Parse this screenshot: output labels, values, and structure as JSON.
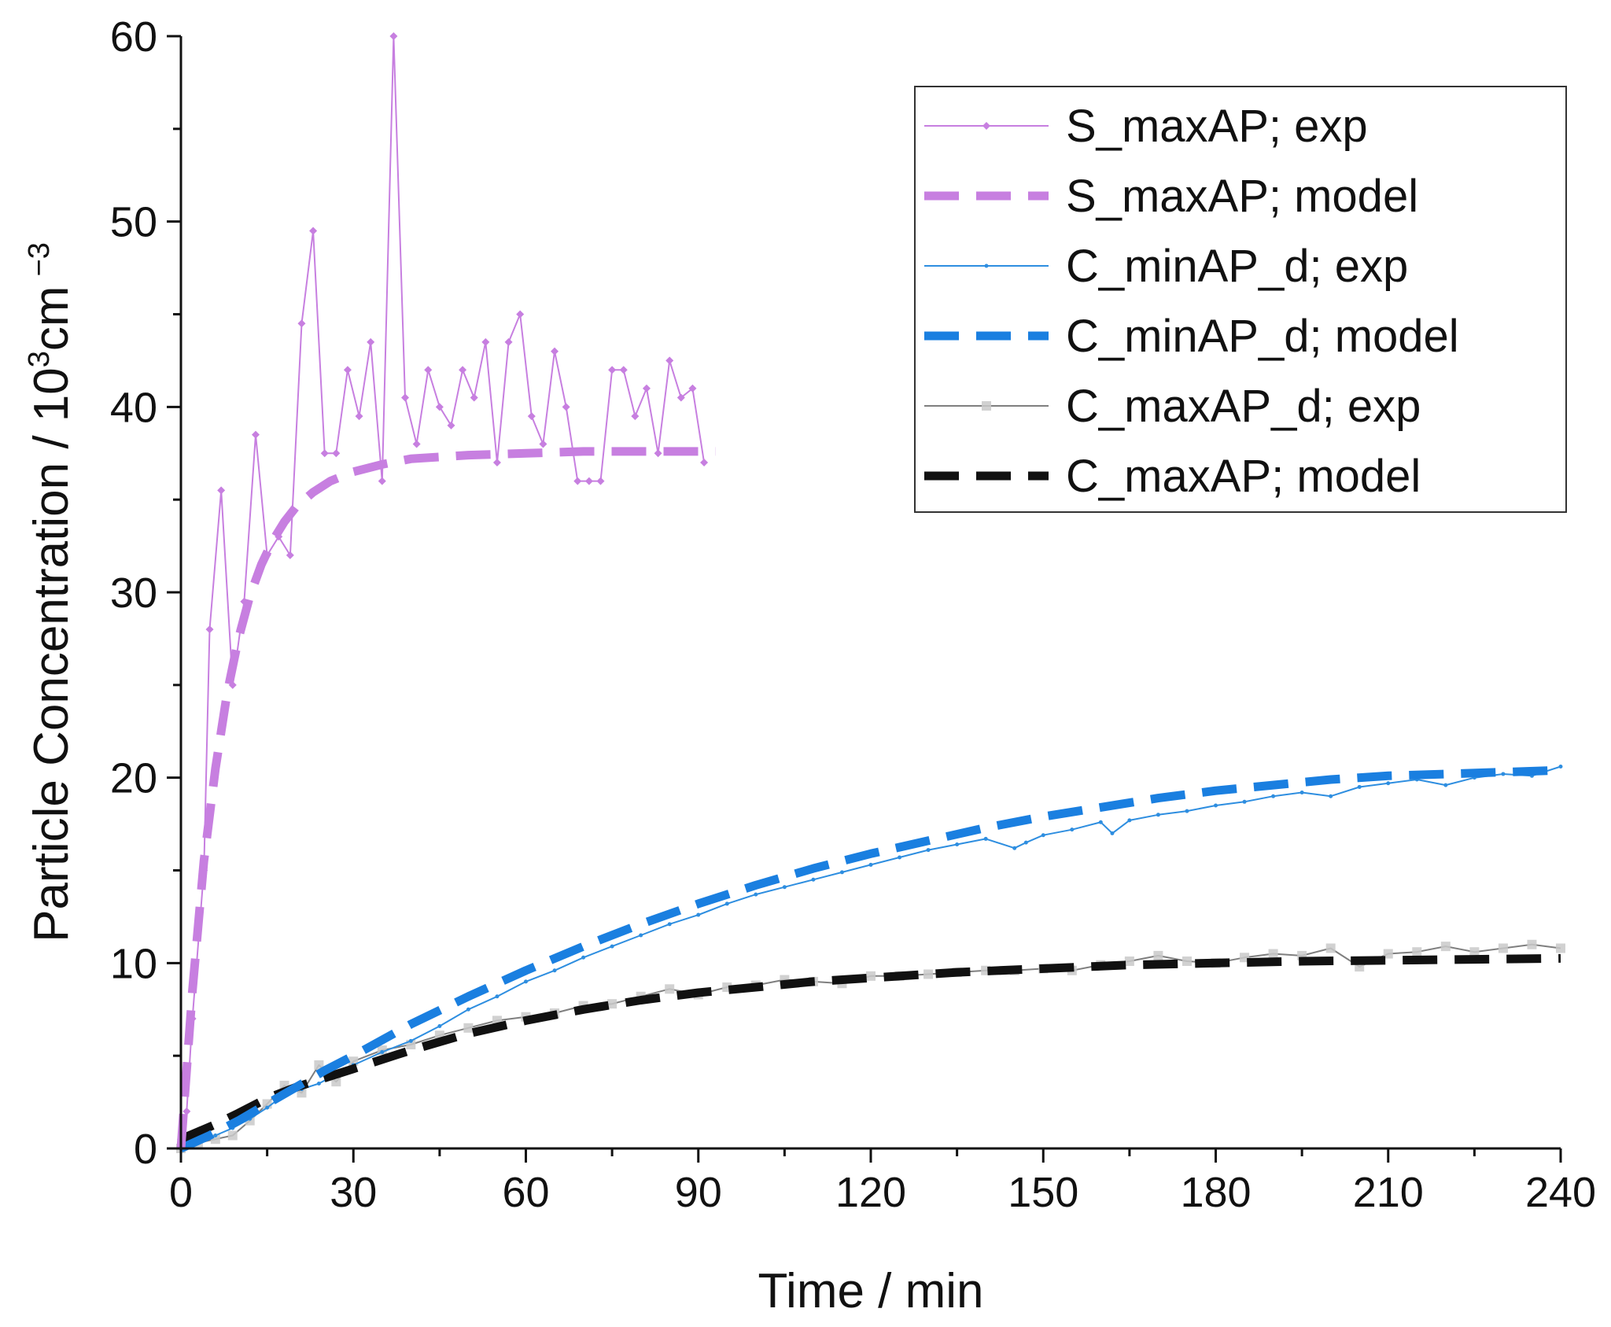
{
  "chart_data": {
    "type": "line",
    "title": "",
    "xlabel": "Time / min",
    "ylabel_main": "Particle Concentration / 10",
    "ylabel_sup": "3",
    "ylabel_unit": "cm",
    "ylabel_unit_sup": "−3",
    "xlim": [
      0,
      240
    ],
    "ylim": [
      0,
      60
    ],
    "xticks": [
      "0",
      "30",
      "60",
      "90",
      "120",
      "150",
      "180",
      "210",
      "240"
    ],
    "yticks": [
      "0",
      "10",
      "20",
      "30",
      "40",
      "50",
      "60"
    ],
    "grid": false,
    "legend_position": "top-right",
    "series": [
      {
        "name": "S_maxAP; exp",
        "style": "thin-line-diamond-markers",
        "color": "#c77fe0",
        "x": [
          0,
          1,
          2,
          4,
          5,
          7,
          9,
          11,
          13,
          15,
          17,
          19,
          21,
          23,
          25,
          27,
          29,
          31,
          33,
          35,
          37,
          39,
          41,
          43,
          45,
          47,
          49,
          51,
          53,
          55,
          57,
          59,
          61,
          63,
          65,
          67,
          69,
          71,
          73,
          75,
          77,
          79,
          81,
          83,
          85,
          87,
          89,
          91
        ],
        "y": [
          0.5,
          2,
          7,
          15,
          28,
          35.5,
          25,
          29.5,
          38.5,
          32,
          33,
          32,
          44.5,
          49.5,
          37.5,
          37.5,
          42,
          39.5,
          43.5,
          36,
          60,
          40.5,
          38,
          42,
          40,
          39,
          42,
          40.5,
          43.5,
          37,
          43.5,
          45,
          39.5,
          38,
          43,
          40,
          36,
          36,
          36,
          42,
          42,
          39.5,
          41,
          37.5,
          42.5,
          40.5,
          41,
          37
        ]
      },
      {
        "name": "S_maxAP; model",
        "style": "dashed",
        "color": "#c77fe0",
        "x": [
          0,
          2,
          4,
          6,
          8,
          10,
          12,
          14,
          16,
          18,
          20,
          23,
          26,
          30,
          35,
          40,
          50,
          60,
          70,
          80,
          93
        ],
        "y": [
          0,
          8.5,
          15.5,
          20.5,
          24.5,
          27.5,
          29.8,
          31.5,
          32.8,
          33.8,
          34.6,
          35.4,
          36.0,
          36.5,
          36.9,
          37.2,
          37.4,
          37.5,
          37.6,
          37.6,
          37.6
        ]
      },
      {
        "name": "C_minAP_d; exp",
        "style": "thin-line-small-markers",
        "color": "#2e8ee0",
        "x": [
          0,
          3,
          6,
          9,
          12,
          15,
          18,
          21,
          24,
          27,
          30,
          35,
          40,
          45,
          50,
          55,
          60,
          65,
          70,
          75,
          80,
          85,
          90,
          95,
          100,
          105,
          110,
          115,
          120,
          125,
          130,
          135,
          140,
          145,
          147,
          150,
          155,
          160,
          162,
          165,
          170,
          175,
          180,
          185,
          190,
          195,
          200,
          205,
          210,
          215,
          220,
          225,
          230,
          235,
          240
        ],
        "y": [
          0,
          0.3,
          0.7,
          1.1,
          1.6,
          2.2,
          2.9,
          3.2,
          3.5,
          4.0,
          4.5,
          5.2,
          5.8,
          6.6,
          7.5,
          8.2,
          9.0,
          9.6,
          10.3,
          10.9,
          11.5,
          12.1,
          12.6,
          13.2,
          13.7,
          14.1,
          14.5,
          14.9,
          15.3,
          15.7,
          16.1,
          16.4,
          16.7,
          16.2,
          16.5,
          16.9,
          17.2,
          17.6,
          17.0,
          17.7,
          18.0,
          18.2,
          18.5,
          18.7,
          19.0,
          19.2,
          19.0,
          19.5,
          19.7,
          19.9,
          19.6,
          20.0,
          20.2,
          20.1,
          20.6
        ]
      },
      {
        "name": "C_minAP_d; model",
        "style": "dashed",
        "color": "#1a7fe0",
        "x": [
          0,
          5,
          10,
          15,
          20,
          25,
          30,
          40,
          50,
          60,
          70,
          80,
          90,
          100,
          110,
          120,
          130,
          140,
          150,
          160,
          170,
          180,
          190,
          200,
          210,
          220,
          230,
          240
        ],
        "y": [
          0,
          0.7,
          1.5,
          2.4,
          3.3,
          4.2,
          5.0,
          6.7,
          8.2,
          9.6,
          10.9,
          12.1,
          13.2,
          14.2,
          15.1,
          15.9,
          16.6,
          17.3,
          17.9,
          18.4,
          18.9,
          19.3,
          19.6,
          19.9,
          20.1,
          20.2,
          20.3,
          20.4
        ]
      },
      {
        "name": "C_maxAP_d; exp",
        "style": "thin-line-square-markers",
        "color": "#7f7f7f",
        "x": [
          0,
          3,
          6,
          9,
          12,
          15,
          18,
          21,
          24,
          27,
          30,
          35,
          40,
          45,
          50,
          55,
          60,
          65,
          70,
          75,
          80,
          85,
          90,
          95,
          100,
          105,
          110,
          115,
          120,
          125,
          130,
          135,
          140,
          145,
          150,
          155,
          160,
          165,
          170,
          175,
          180,
          185,
          190,
          195,
          200,
          205,
          210,
          215,
          220,
          225,
          230,
          235,
          240
        ],
        "y": [
          0,
          0.3,
          0.5,
          0.7,
          1.5,
          2.4,
          3.4,
          3.0,
          4.5,
          3.6,
          4.7,
          5.3,
          5.6,
          6.1,
          6.5,
          6.9,
          7.1,
          7.3,
          7.7,
          7.8,
          8.2,
          8.6,
          8.3,
          8.7,
          8.8,
          9.1,
          9.0,
          8.9,
          9.3,
          9.3,
          9.4,
          9.5,
          9.6,
          9.6,
          9.7,
          9.6,
          9.9,
          10.1,
          10.4,
          10.1,
          10.0,
          10.3,
          10.5,
          10.4,
          10.8,
          9.8,
          10.5,
          10.6,
          10.9,
          10.6,
          10.8,
          11.0,
          10.8
        ]
      },
      {
        "name": "C_maxAP; model",
        "style": "dashed",
        "color": "#111111",
        "x": [
          0,
          6,
          10,
          15,
          20,
          25,
          30,
          40,
          50,
          60,
          70,
          80,
          90,
          100,
          110,
          120,
          135,
          150,
          165,
          180,
          195,
          210,
          225,
          240
        ],
        "y": [
          0.5,
          1.3,
          1.9,
          2.7,
          3.3,
          3.8,
          4.3,
          5.3,
          6.2,
          6.9,
          7.5,
          8.0,
          8.4,
          8.7,
          9.0,
          9.2,
          9.5,
          9.7,
          9.9,
          10.0,
          10.1,
          10.15,
          10.2,
          10.25
        ]
      }
    ]
  }
}
